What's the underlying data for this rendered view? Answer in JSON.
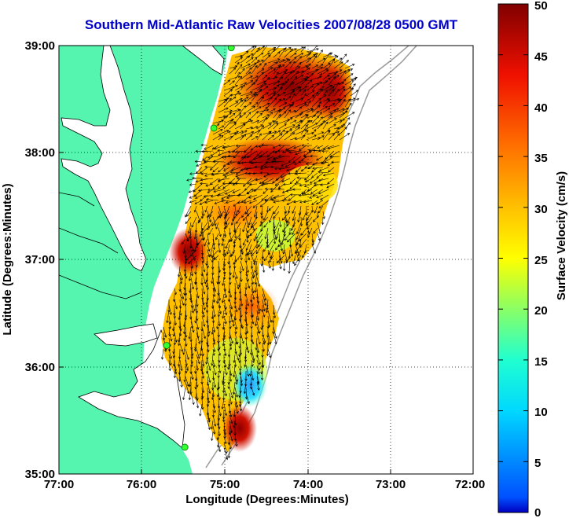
{
  "title": "Southern Mid-Atlantic Raw Velocities 2007/08/28 0500 GMT",
  "x_axis": {
    "label": "Longitude (Degrees:Minutes)",
    "ticks": [
      "77:00",
      "76:00",
      "75:00",
      "74:00",
      "73:00",
      "72:00"
    ]
  },
  "y_axis": {
    "label": "Latitude (Degrees:Minutes)",
    "ticks": [
      "39:00",
      "38:00",
      "37:00",
      "36:00",
      "35:00"
    ]
  },
  "colorbar": {
    "label": "Surface Velocity (cm/s)",
    "ticks": [
      "50",
      "45",
      "40",
      "35",
      "30",
      "25",
      "20",
      "15",
      "10",
      "5",
      "0"
    ],
    "min": 0,
    "max": 50,
    "colormap": "jet"
  },
  "colors": {
    "land": "#55f5b0",
    "title": "#0000cc",
    "station": "#33ff33",
    "bathymetry": "#999999"
  },
  "stations": [
    {
      "lon": -74.92,
      "lat": 38.98
    },
    {
      "lon": -75.13,
      "lat": 38.23
    },
    {
      "lon": -75.7,
      "lat": 36.2
    },
    {
      "lon": -75.48,
      "lat": 35.25
    }
  ],
  "map_extent": {
    "lon": [
      -77,
      -72
    ],
    "lat": [
      35,
      39
    ]
  },
  "grid": true
}
